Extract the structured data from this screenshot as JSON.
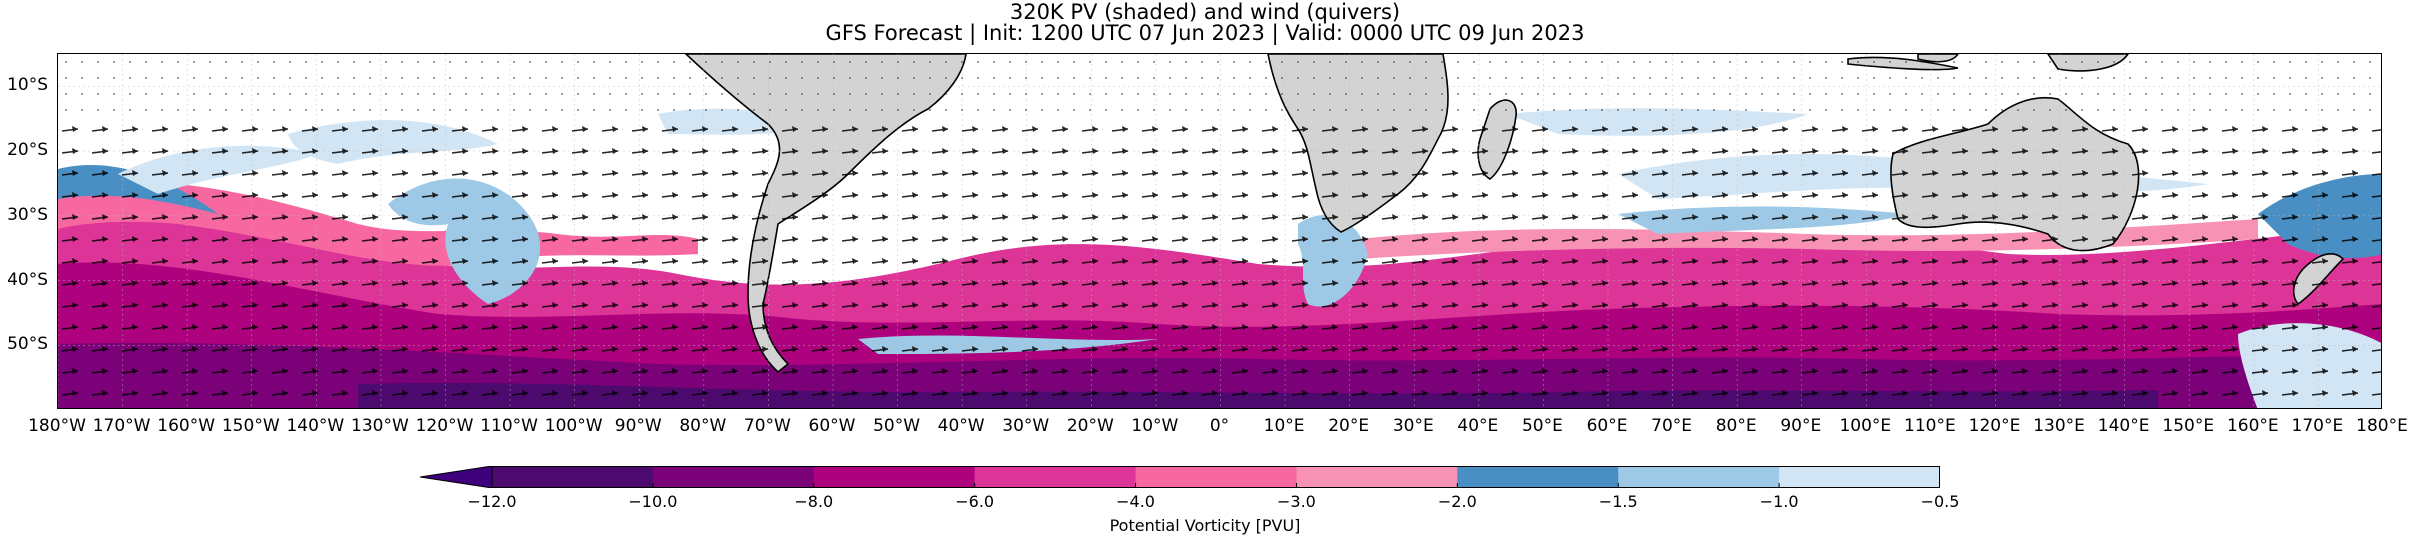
{
  "header": {
    "title_line_1": "320K PV (shaded) and wind (quivers)",
    "title_line_2": "GFS Forecast | Init: 1200 UTC 07 Jun 2023 | Valid: 0000 UTC 09 Jun 2023"
  },
  "map": {
    "projection": "PlateCarree",
    "lon_range": [
      -180,
      180
    ],
    "lat_range": [
      -60,
      -5
    ],
    "lat_ticks": [
      {
        "value": -10,
        "label": "10°S"
      },
      {
        "value": -20,
        "label": "20°S"
      },
      {
        "value": -30,
        "label": "30°S"
      },
      {
        "value": -40,
        "label": "40°S"
      },
      {
        "value": -50,
        "label": "50°S"
      }
    ],
    "lon_ticks": [
      {
        "value": -180,
        "label": "180°W"
      },
      {
        "value": -170,
        "label": "170°W"
      },
      {
        "value": -160,
        "label": "160°W"
      },
      {
        "value": -150,
        "label": "150°W"
      },
      {
        "value": -140,
        "label": "140°W"
      },
      {
        "value": -130,
        "label": "130°W"
      },
      {
        "value": -120,
        "label": "120°W"
      },
      {
        "value": -110,
        "label": "110°W"
      },
      {
        "value": -100,
        "label": "100°W"
      },
      {
        "value": -90,
        "label": "90°W"
      },
      {
        "value": -80,
        "label": "80°W"
      },
      {
        "value": -70,
        "label": "70°W"
      },
      {
        "value": -60,
        "label": "60°W"
      },
      {
        "value": -50,
        "label": "50°W"
      },
      {
        "value": -40,
        "label": "40°W"
      },
      {
        "value": -30,
        "label": "30°W"
      },
      {
        "value": -20,
        "label": "20°W"
      },
      {
        "value": -10,
        "label": "10°W"
      },
      {
        "value": 0,
        "label": "0°"
      },
      {
        "value": 10,
        "label": "10°E"
      },
      {
        "value": 20,
        "label": "20°E"
      },
      {
        "value": 30,
        "label": "30°E"
      },
      {
        "value": 40,
        "label": "40°E"
      },
      {
        "value": 50,
        "label": "50°E"
      },
      {
        "value": 60,
        "label": "60°E"
      },
      {
        "value": 70,
        "label": "70°E"
      },
      {
        "value": 80,
        "label": "80°E"
      },
      {
        "value": 90,
        "label": "90°E"
      },
      {
        "value": 100,
        "label": "100°E"
      },
      {
        "value": 110,
        "label": "110°E"
      },
      {
        "value": 120,
        "label": "120°E"
      },
      {
        "value": 130,
        "label": "130°E"
      },
      {
        "value": 140,
        "label": "140°E"
      },
      {
        "value": 150,
        "label": "150°E"
      },
      {
        "value": 160,
        "label": "160°E"
      },
      {
        "value": 170,
        "label": "170°E"
      },
      {
        "value": 180,
        "label": "180°E"
      }
    ],
    "land_color": "#d3d3d3",
    "gridlines": true
  },
  "colorbar": {
    "title": "Potential Vorticity [PVU]",
    "extend": "min",
    "bounds": [
      -12.0,
      -10.0,
      -8.0,
      -6.0,
      -4.0,
      -3.0,
      -2.0,
      -1.5,
      -1.0,
      -0.5
    ],
    "tick_labels": [
      "−12.0",
      "−10.0",
      "−8.0",
      "−6.0",
      "−4.0",
      "−3.0",
      "−2.0",
      "−1.5",
      "−1.0",
      "−0.5"
    ],
    "under_color": "#3f007d",
    "colors": [
      "#4d0a6e",
      "#7a0177",
      "#ae017e",
      "#dd3497",
      "#f768a1",
      "#f792b4",
      "#4a8fc4",
      "#9ec9e6",
      "#d2e5f4"
    ]
  }
}
